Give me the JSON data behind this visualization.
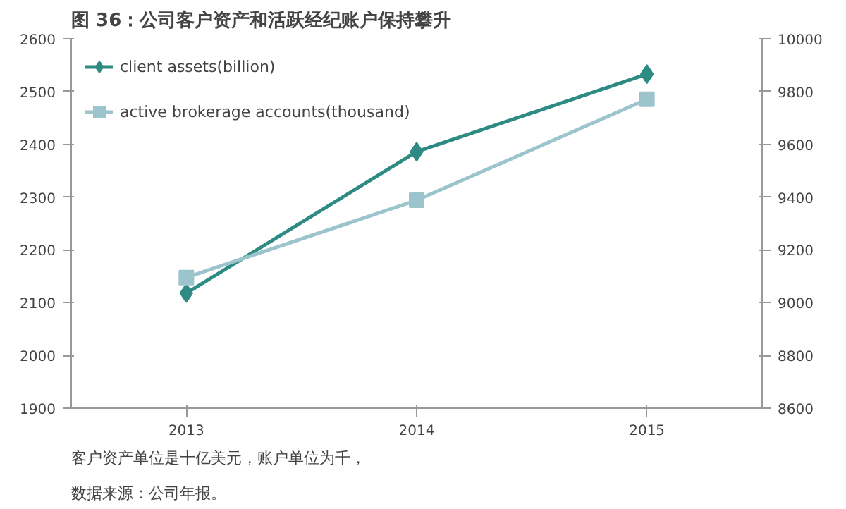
{
  "chart_data": {
    "type": "line",
    "title": "图 36：公司客户资产和活跃经纪账户保持攀升",
    "categories": [
      "2013",
      "2014",
      "2015"
    ],
    "series": [
      {
        "name": "client assets(billion)",
        "color": "#2e8b84",
        "values": [
          2118,
          2386,
          2533
        ],
        "marker": "diamond"
      },
      {
        "name": "active brokerage accounts(thousand)",
        "color": "#9cc4cc",
        "values": [
          9095,
          9388,
          9771
        ],
        "marker": "square",
        "axis": "y2"
      }
    ],
    "ylim": [
      1900,
      2600
    ],
    "yticks": [
      1900,
      2000,
      2100,
      2200,
      2300,
      2400,
      2500,
      2600
    ],
    "y2lim": [
      8600,
      10000
    ],
    "y2ticks": [
      8600,
      8800,
      9000,
      9200,
      9400,
      9600,
      9800,
      10000
    ],
    "grid": false,
    "legend": "top left",
    "line_style": "solid",
    "annotations": [
      "客户资产单位是十亿美元，账户单位为千，",
      "数据来源：公司年报。"
    ]
  }
}
